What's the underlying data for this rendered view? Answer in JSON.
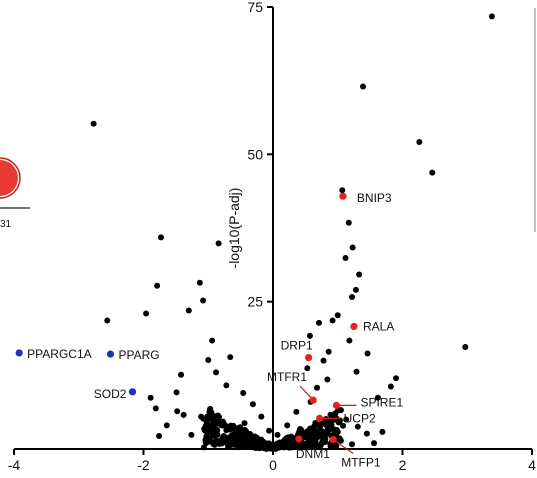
{
  "chart_data": {
    "type": "scatter",
    "title": "",
    "xlabel": "",
    "ylabel": "-log10(P-adj)",
    "xlim": [
      -4,
      4
    ],
    "ylim": [
      0,
      75
    ],
    "x_ticks": [
      -4,
      -2,
      0,
      2,
      4
    ],
    "y_ticks": [
      25,
      50,
      75
    ],
    "x_tick_labels": [
      "-4",
      "-2",
      "0",
      "2",
      "4"
    ],
    "y_tick_labels": [
      "25",
      "50",
      "75"
    ],
    "grid": false,
    "colors": {
      "background_points": "#000000",
      "up": "#e8211b",
      "down": "#1f2fbf",
      "leader": "#d21414"
    },
    "points": [
      [
        3.38,
        73.4
      ],
      [
        1.39,
        61.5
      ],
      [
        -2.77,
        55.2
      ],
      [
        2.26,
        52.1
      ],
      [
        2.46,
        46.9
      ],
      [
        1.07,
        43.9
      ],
      [
        1.17,
        38.4
      ],
      [
        1.23,
        34.2
      ],
      [
        1.12,
        32.4
      ],
      [
        1.33,
        29.6
      ],
      [
        1.28,
        27.0
      ],
      [
        1.22,
        25.8
      ],
      [
        -1.73,
        35.9
      ],
      [
        -0.84,
        34.9
      ],
      [
        -1.79,
        27.7
      ],
      [
        -1.96,
        23.0
      ],
      [
        -2.56,
        21.8
      ],
      [
        -1.13,
        28.2
      ],
      [
        -1.08,
        25.2
      ],
      [
        -1.3,
        23.5
      ],
      [
        -0.94,
        18.4
      ],
      [
        2.97,
        17.3
      ],
      [
        0.71,
        21.4
      ],
      [
        0.92,
        21.8
      ],
      [
        0.57,
        19.2
      ],
      [
        1.0,
        22.7
      ],
      [
        0.86,
        16.5
      ],
      [
        1.18,
        18.4
      ],
      [
        1.46,
        16.2
      ],
      [
        1.9,
        12.0
      ],
      [
        1.82,
        10.6
      ],
      [
        1.62,
        8.7
      ],
      [
        1.29,
        13.1
      ],
      [
        0.78,
        15.0
      ],
      [
        0.53,
        13.7
      ],
      [
        -0.66,
        15.6
      ],
      [
        -1.0,
        15.1
      ],
      [
        -0.88,
        13.0
      ],
      [
        -1.42,
        12.6
      ],
      [
        -1.49,
        9.6
      ],
      [
        -1.89,
        8.7
      ],
      [
        -1.81,
        6.9
      ],
      [
        -1.48,
        6.4
      ],
      [
        -1.38,
        5.8
      ],
      [
        -1.64,
        4.0
      ],
      [
        -1.76,
        2.2
      ],
      [
        -1.26,
        2.4
      ],
      [
        -1.11,
        5.5
      ],
      [
        -0.72,
        10.8
      ],
      [
        -0.46,
        9.5
      ],
      [
        -0.31,
        7.6
      ],
      [
        -0.18,
        5.5
      ],
      [
        -0.06,
        3.1
      ],
      [
        0.07,
        2.4
      ],
      [
        0.22,
        4.0
      ],
      [
        0.36,
        6.3
      ],
      [
        0.58,
        8.0
      ],
      [
        0.68,
        10.4
      ],
      [
        0.84,
        11.8
      ],
      [
        1.13,
        5.0
      ],
      [
        1.31,
        3.8
      ],
      [
        1.45,
        2.6
      ],
      [
        1.56,
        1.0
      ],
      [
        1.69,
        2.9
      ],
      [
        -0.53,
        3.5
      ],
      [
        -0.82,
        4.6
      ],
      [
        -0.97,
        6.8
      ],
      [
        -0.38,
        1.4
      ],
      [
        -0.15,
        0.6
      ],
      [
        0.05,
        0.4
      ],
      [
        0.17,
        1.1
      ],
      [
        0.31,
        0.8
      ],
      [
        0.45,
        2.0
      ],
      [
        0.95,
        3.0
      ],
      [
        1.05,
        1.4
      ],
      [
        -0.25,
        1.9
      ],
      [
        -0.62,
        1.0
      ],
      [
        -0.76,
        2.2
      ],
      [
        -0.9,
        0.7
      ],
      [
        -1.02,
        1.6
      ],
      [
        0.66,
        0.9
      ],
      [
        0.79,
        1.9
      ],
      [
        1.22,
        0.8
      ],
      [
        0.42,
        3.4
      ],
      [
        -0.44,
        4.4
      ]
    ],
    "highlighted_up": [
      {
        "label": "BNIP3",
        "x": 1.08,
        "y": 42.9
      },
      {
        "label": "RALA",
        "x": 1.25,
        "y": 20.8
      },
      {
        "label": "DRP1",
        "x": 0.55,
        "y": 15.5
      },
      {
        "label": "MTFR1",
        "x": 0.62,
        "y": 8.3
      },
      {
        "label": "SPIRE1",
        "x": 0.98,
        "y": 7.4
      },
      {
        "label": "UCP2",
        "x": 0.72,
        "y": 5.2
      },
      {
        "label": "DNM1",
        "x": 0.4,
        "y": 1.7
      },
      {
        "label": "MTFP1",
        "x": 0.93,
        "y": 1.6
      }
    ],
    "highlighted_down": [
      {
        "label": "PPARGC1A",
        "x": -3.92,
        "y": 16.3
      },
      {
        "label": "PPARG",
        "x": -2.51,
        "y": 16.1
      },
      {
        "label": "SOD2",
        "x": -2.17,
        "y": 9.7
      }
    ]
  },
  "fragments": {
    "left_number": "31"
  }
}
